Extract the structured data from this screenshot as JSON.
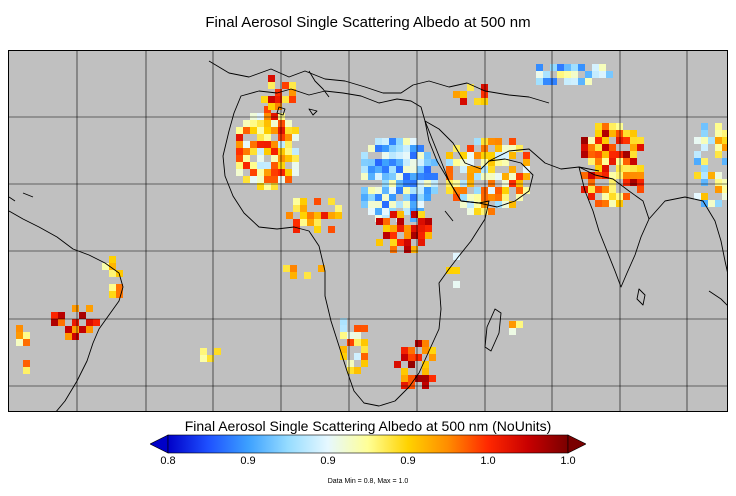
{
  "title": "Final Aerosol Single Scattering Albedo at 500 nm",
  "colorbar": {
    "title": "Final Aerosol Single Scattering Albedo at 500 nm (NoUnits)",
    "tick_labels": [
      "0.8",
      "0.9",
      "0.9",
      "0.9",
      "1.0",
      "1.0"
    ],
    "min": 0.8,
    "max": 1.0,
    "stops": [
      "#0000c8",
      "#1e50ff",
      "#3ca0ff",
      "#96dcff",
      "#e6f8ff",
      "#ffff96",
      "#ffd200",
      "#ff8c00",
      "#ff2800",
      "#c80000",
      "#7a0000"
    ],
    "under_color": "#0000c8",
    "over_color": "#7a0000"
  },
  "stats_text": "Data Min = 0.8, Max = 1.0",
  "map": {
    "no_data_color": "#c0c0c0",
    "grid_color": "#000000",
    "coastline_color": "#000000",
    "region": "Africa, Middle East and South Asia"
  }
}
